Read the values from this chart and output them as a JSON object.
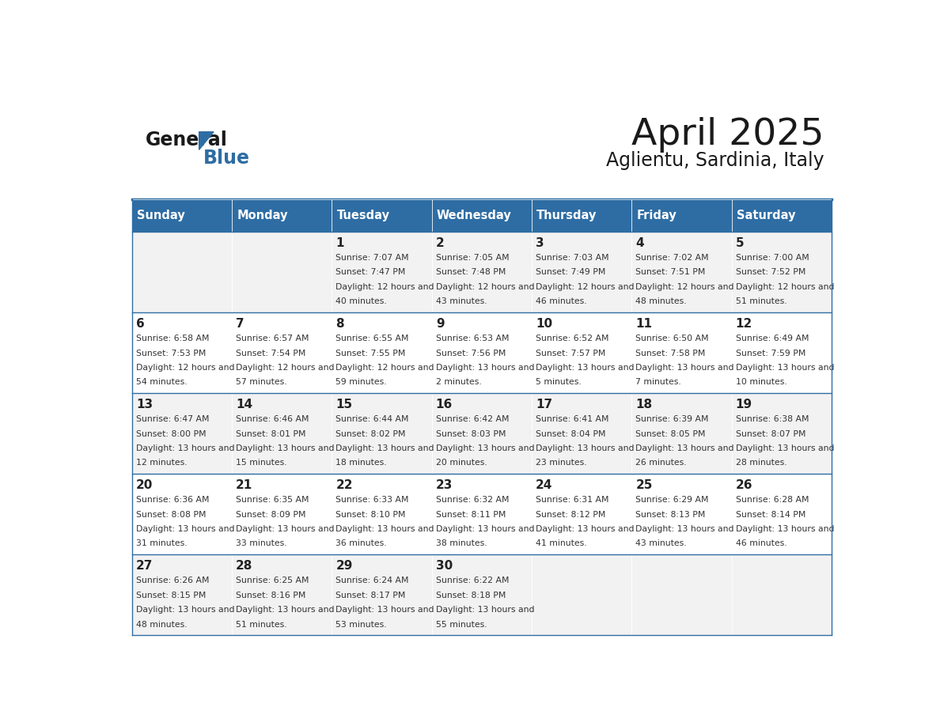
{
  "title": "April 2025",
  "subtitle": "Aglientu, Sardinia, Italy",
  "days_of_week": [
    "Sunday",
    "Monday",
    "Tuesday",
    "Wednesday",
    "Thursday",
    "Friday",
    "Saturday"
  ],
  "header_bg": "#2E6DA4",
  "header_text": "#FFFFFF",
  "row_bg_even": "#F2F2F2",
  "row_bg_odd": "#FFFFFF",
  "cell_text_color": "#333333",
  "border_color": "#2E6DA4",
  "weeks": [
    {
      "days": [
        {
          "date": "",
          "sunrise": "",
          "sunset": "",
          "daylight": ""
        },
        {
          "date": "",
          "sunrise": "",
          "sunset": "",
          "daylight": ""
        },
        {
          "date": "1",
          "sunrise": "7:07 AM",
          "sunset": "7:47 PM",
          "daylight": "12 hours and 40 minutes."
        },
        {
          "date": "2",
          "sunrise": "7:05 AM",
          "sunset": "7:48 PM",
          "daylight": "12 hours and 43 minutes."
        },
        {
          "date": "3",
          "sunrise": "7:03 AM",
          "sunset": "7:49 PM",
          "daylight": "12 hours and 46 minutes."
        },
        {
          "date": "4",
          "sunrise": "7:02 AM",
          "sunset": "7:51 PM",
          "daylight": "12 hours and 48 minutes."
        },
        {
          "date": "5",
          "sunrise": "7:00 AM",
          "sunset": "7:52 PM",
          "daylight": "12 hours and 51 minutes."
        }
      ]
    },
    {
      "days": [
        {
          "date": "6",
          "sunrise": "6:58 AM",
          "sunset": "7:53 PM",
          "daylight": "12 hours and 54 minutes."
        },
        {
          "date": "7",
          "sunrise": "6:57 AM",
          "sunset": "7:54 PM",
          "daylight": "12 hours and 57 minutes."
        },
        {
          "date": "8",
          "sunrise": "6:55 AM",
          "sunset": "7:55 PM",
          "daylight": "12 hours and 59 minutes."
        },
        {
          "date": "9",
          "sunrise": "6:53 AM",
          "sunset": "7:56 PM",
          "daylight": "13 hours and 2 minutes."
        },
        {
          "date": "10",
          "sunrise": "6:52 AM",
          "sunset": "7:57 PM",
          "daylight": "13 hours and 5 minutes."
        },
        {
          "date": "11",
          "sunrise": "6:50 AM",
          "sunset": "7:58 PM",
          "daylight": "13 hours and 7 minutes."
        },
        {
          "date": "12",
          "sunrise": "6:49 AM",
          "sunset": "7:59 PM",
          "daylight": "13 hours and 10 minutes."
        }
      ]
    },
    {
      "days": [
        {
          "date": "13",
          "sunrise": "6:47 AM",
          "sunset": "8:00 PM",
          "daylight": "13 hours and 12 minutes."
        },
        {
          "date": "14",
          "sunrise": "6:46 AM",
          "sunset": "8:01 PM",
          "daylight": "13 hours and 15 minutes."
        },
        {
          "date": "15",
          "sunrise": "6:44 AM",
          "sunset": "8:02 PM",
          "daylight": "13 hours and 18 minutes."
        },
        {
          "date": "16",
          "sunrise": "6:42 AM",
          "sunset": "8:03 PM",
          "daylight": "13 hours and 20 minutes."
        },
        {
          "date": "17",
          "sunrise": "6:41 AM",
          "sunset": "8:04 PM",
          "daylight": "13 hours and 23 minutes."
        },
        {
          "date": "18",
          "sunrise": "6:39 AM",
          "sunset": "8:05 PM",
          "daylight": "13 hours and 26 minutes."
        },
        {
          "date": "19",
          "sunrise": "6:38 AM",
          "sunset": "8:07 PM",
          "daylight": "13 hours and 28 minutes."
        }
      ]
    },
    {
      "days": [
        {
          "date": "20",
          "sunrise": "6:36 AM",
          "sunset": "8:08 PM",
          "daylight": "13 hours and 31 minutes."
        },
        {
          "date": "21",
          "sunrise": "6:35 AM",
          "sunset": "8:09 PM",
          "daylight": "13 hours and 33 minutes."
        },
        {
          "date": "22",
          "sunrise": "6:33 AM",
          "sunset": "8:10 PM",
          "daylight": "13 hours and 36 minutes."
        },
        {
          "date": "23",
          "sunrise": "6:32 AM",
          "sunset": "8:11 PM",
          "daylight": "13 hours and 38 minutes."
        },
        {
          "date": "24",
          "sunrise": "6:31 AM",
          "sunset": "8:12 PM",
          "daylight": "13 hours and 41 minutes."
        },
        {
          "date": "25",
          "sunrise": "6:29 AM",
          "sunset": "8:13 PM",
          "daylight": "13 hours and 43 minutes."
        },
        {
          "date": "26",
          "sunrise": "6:28 AM",
          "sunset": "8:14 PM",
          "daylight": "13 hours and 46 minutes."
        }
      ]
    },
    {
      "days": [
        {
          "date": "27",
          "sunrise": "6:26 AM",
          "sunset": "8:15 PM",
          "daylight": "13 hours and 48 minutes."
        },
        {
          "date": "28",
          "sunrise": "6:25 AM",
          "sunset": "8:16 PM",
          "daylight": "13 hours and 51 minutes."
        },
        {
          "date": "29",
          "sunrise": "6:24 AM",
          "sunset": "8:17 PM",
          "daylight": "13 hours and 53 minutes."
        },
        {
          "date": "30",
          "sunrise": "6:22 AM",
          "sunset": "8:18 PM",
          "daylight": "13 hours and 55 minutes."
        },
        {
          "date": "",
          "sunrise": "",
          "sunset": "",
          "daylight": ""
        },
        {
          "date": "",
          "sunrise": "",
          "sunset": "",
          "daylight": ""
        },
        {
          "date": "",
          "sunrise": "",
          "sunset": "",
          "daylight": ""
        }
      ]
    }
  ]
}
